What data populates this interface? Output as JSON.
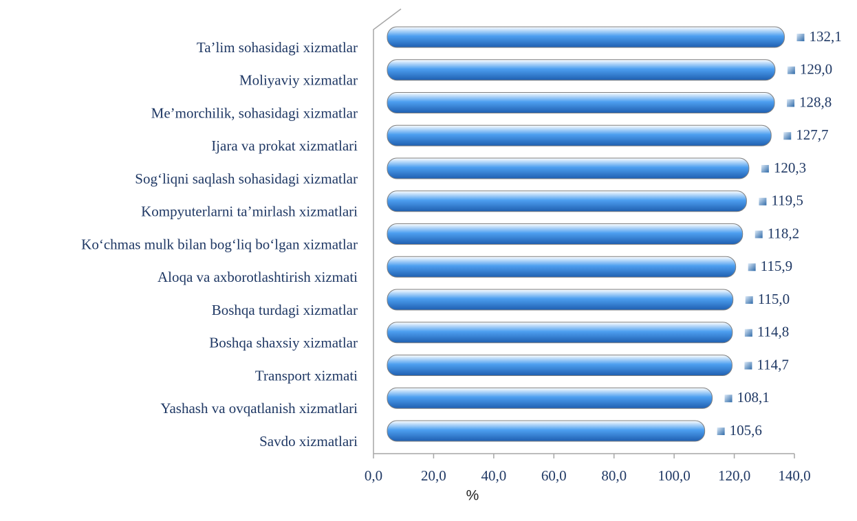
{
  "chart_data": {
    "type": "bar",
    "orientation": "horizontal",
    "categories": [
      "Ta’lim sohasidagi xizmatlar",
      "Moliyaviy xizmatlar",
      "Me’morchilik, sohasidagi xizmatlar",
      "Ijara va prokat xizmatlari",
      "Sog‘liqni saqlash sohasidagi xizmatlar",
      "Kompyuterlarni ta’mirlash xizmatlari",
      "Ko‘chmas mulk bilan bog‘liq bo‘lgan xizmatlar",
      "Aloqa va axborotlashtirish xizmati",
      "Boshqa turdagi xizmatlar",
      "Boshqa shaxsiy xizmatlar",
      "Transport xizmati",
      "Yashash va ovqatlanish xizmatlari",
      "Savdo xizmatlari"
    ],
    "values": [
      132.1,
      129.0,
      128.8,
      127.7,
      120.3,
      119.5,
      118.2,
      115.9,
      115.0,
      114.8,
      114.7,
      108.1,
      105.6
    ],
    "value_labels": [
      "132,1",
      "129,0",
      "128,8",
      "127,7",
      "120,3",
      "119,5",
      "118,2",
      "115,9",
      "115,0",
      "114,8",
      "114,7",
      "108,1",
      "105,6"
    ],
    "color": "#4d9ff0",
    "xlabel": "%",
    "xlim": [
      0,
      140
    ],
    "xticks": [
      {
        "value": 0,
        "label": "0,0"
      },
      {
        "value": 20,
        "label": "20,0"
      },
      {
        "value": 40,
        "label": "40,0"
      },
      {
        "value": 60,
        "label": "60,0"
      },
      {
        "value": 80,
        "label": "80,0"
      },
      {
        "value": 100,
        "label": "100,0"
      },
      {
        "value": 120,
        "label": "120,0"
      },
      {
        "value": 140,
        "label": "140,0"
      }
    ]
  }
}
